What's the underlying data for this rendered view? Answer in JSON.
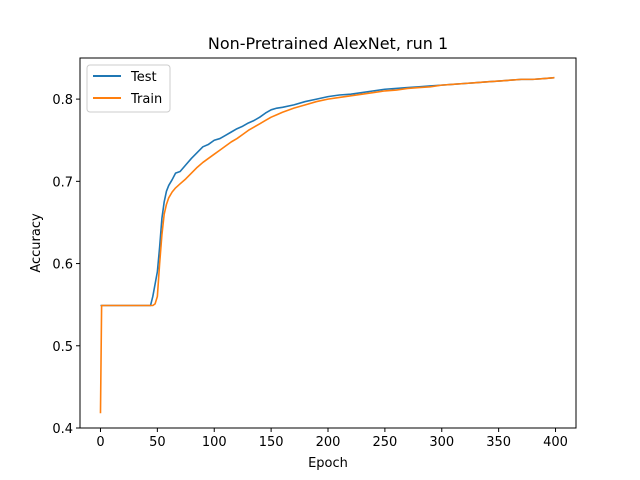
{
  "chart_data": {
    "type": "line",
    "title": "Non-Pretrained AlexNet, run 1",
    "xlabel": "Epoch",
    "ylabel": "Accuracy",
    "xlim": [
      -18,
      418
    ],
    "ylim": [
      0.4,
      0.85
    ],
    "xticks": [
      0,
      50,
      100,
      150,
      200,
      250,
      300,
      350,
      400
    ],
    "yticks": [
      0.4,
      0.5,
      0.6,
      0.7,
      0.8
    ],
    "grid": false,
    "legend_position": "top-left",
    "series": [
      {
        "name": "Test",
        "color": "#1f77b4",
        "points": [
          [
            0,
            0.549
          ],
          [
            1,
            0.549
          ],
          [
            10,
            0.549
          ],
          [
            20,
            0.549
          ],
          [
            30,
            0.549
          ],
          [
            40,
            0.549
          ],
          [
            44,
            0.549
          ],
          [
            46,
            0.56
          ],
          [
            48,
            0.575
          ],
          [
            50,
            0.59
          ],
          [
            52,
            0.62
          ],
          [
            54,
            0.655
          ],
          [
            56,
            0.675
          ],
          [
            58,
            0.688
          ],
          [
            60,
            0.695
          ],
          [
            63,
            0.702
          ],
          [
            66,
            0.71
          ],
          [
            70,
            0.712
          ],
          [
            75,
            0.72
          ],
          [
            80,
            0.728
          ],
          [
            85,
            0.735
          ],
          [
            90,
            0.742
          ],
          [
            95,
            0.745
          ],
          [
            100,
            0.75
          ],
          [
            105,
            0.752
          ],
          [
            110,
            0.756
          ],
          [
            115,
            0.76
          ],
          [
            120,
            0.764
          ],
          [
            125,
            0.767
          ],
          [
            130,
            0.771
          ],
          [
            135,
            0.774
          ],
          [
            140,
            0.778
          ],
          [
            145,
            0.783
          ],
          [
            150,
            0.787
          ],
          [
            155,
            0.789
          ],
          [
            160,
            0.79
          ],
          [
            170,
            0.793
          ],
          [
            180,
            0.797
          ],
          [
            190,
            0.8
          ],
          [
            200,
            0.803
          ],
          [
            210,
            0.805
          ],
          [
            220,
            0.806
          ],
          [
            230,
            0.808
          ],
          [
            240,
            0.81
          ],
          [
            250,
            0.812
          ],
          [
            260,
            0.813
          ],
          [
            270,
            0.814
          ],
          [
            280,
            0.815
          ],
          [
            290,
            0.816
          ],
          [
            300,
            0.817
          ],
          [
            310,
            0.818
          ],
          [
            320,
            0.819
          ],
          [
            330,
            0.82
          ],
          [
            340,
            0.821
          ],
          [
            350,
            0.822
          ],
          [
            360,
            0.823
          ],
          [
            370,
            0.824
          ],
          [
            380,
            0.824
          ],
          [
            390,
            0.825
          ],
          [
            399,
            0.826
          ]
        ]
      },
      {
        "name": "Train",
        "color": "#ff7f0e",
        "points": [
          [
            0,
            0.418
          ],
          [
            1,
            0.549
          ],
          [
            10,
            0.549
          ],
          [
            20,
            0.549
          ],
          [
            30,
            0.549
          ],
          [
            40,
            0.549
          ],
          [
            46,
            0.549
          ],
          [
            48,
            0.551
          ],
          [
            50,
            0.56
          ],
          [
            52,
            0.6
          ],
          [
            54,
            0.635
          ],
          [
            56,
            0.66
          ],
          [
            58,
            0.672
          ],
          [
            60,
            0.68
          ],
          [
            63,
            0.687
          ],
          [
            66,
            0.692
          ],
          [
            70,
            0.697
          ],
          [
            75,
            0.703
          ],
          [
            80,
            0.71
          ],
          [
            85,
            0.717
          ],
          [
            90,
            0.723
          ],
          [
            95,
            0.728
          ],
          [
            100,
            0.733
          ],
          [
            105,
            0.738
          ],
          [
            110,
            0.743
          ],
          [
            115,
            0.748
          ],
          [
            120,
            0.752
          ],
          [
            125,
            0.757
          ],
          [
            130,
            0.762
          ],
          [
            135,
            0.766
          ],
          [
            140,
            0.77
          ],
          [
            145,
            0.774
          ],
          [
            150,
            0.778
          ],
          [
            155,
            0.781
          ],
          [
            160,
            0.784
          ],
          [
            170,
            0.789
          ],
          [
            180,
            0.793
          ],
          [
            190,
            0.797
          ],
          [
            200,
            0.8
          ],
          [
            210,
            0.802
          ],
          [
            220,
            0.804
          ],
          [
            230,
            0.806
          ],
          [
            240,
            0.808
          ],
          [
            250,
            0.81
          ],
          [
            260,
            0.811
          ],
          [
            270,
            0.813
          ],
          [
            280,
            0.814
          ],
          [
            290,
            0.815
          ],
          [
            300,
            0.817
          ],
          [
            310,
            0.818
          ],
          [
            320,
            0.819
          ],
          [
            330,
            0.82
          ],
          [
            340,
            0.821
          ],
          [
            350,
            0.822
          ],
          [
            360,
            0.823
          ],
          [
            370,
            0.824
          ],
          [
            380,
            0.824
          ],
          [
            390,
            0.825
          ],
          [
            399,
            0.826
          ]
        ]
      }
    ]
  }
}
